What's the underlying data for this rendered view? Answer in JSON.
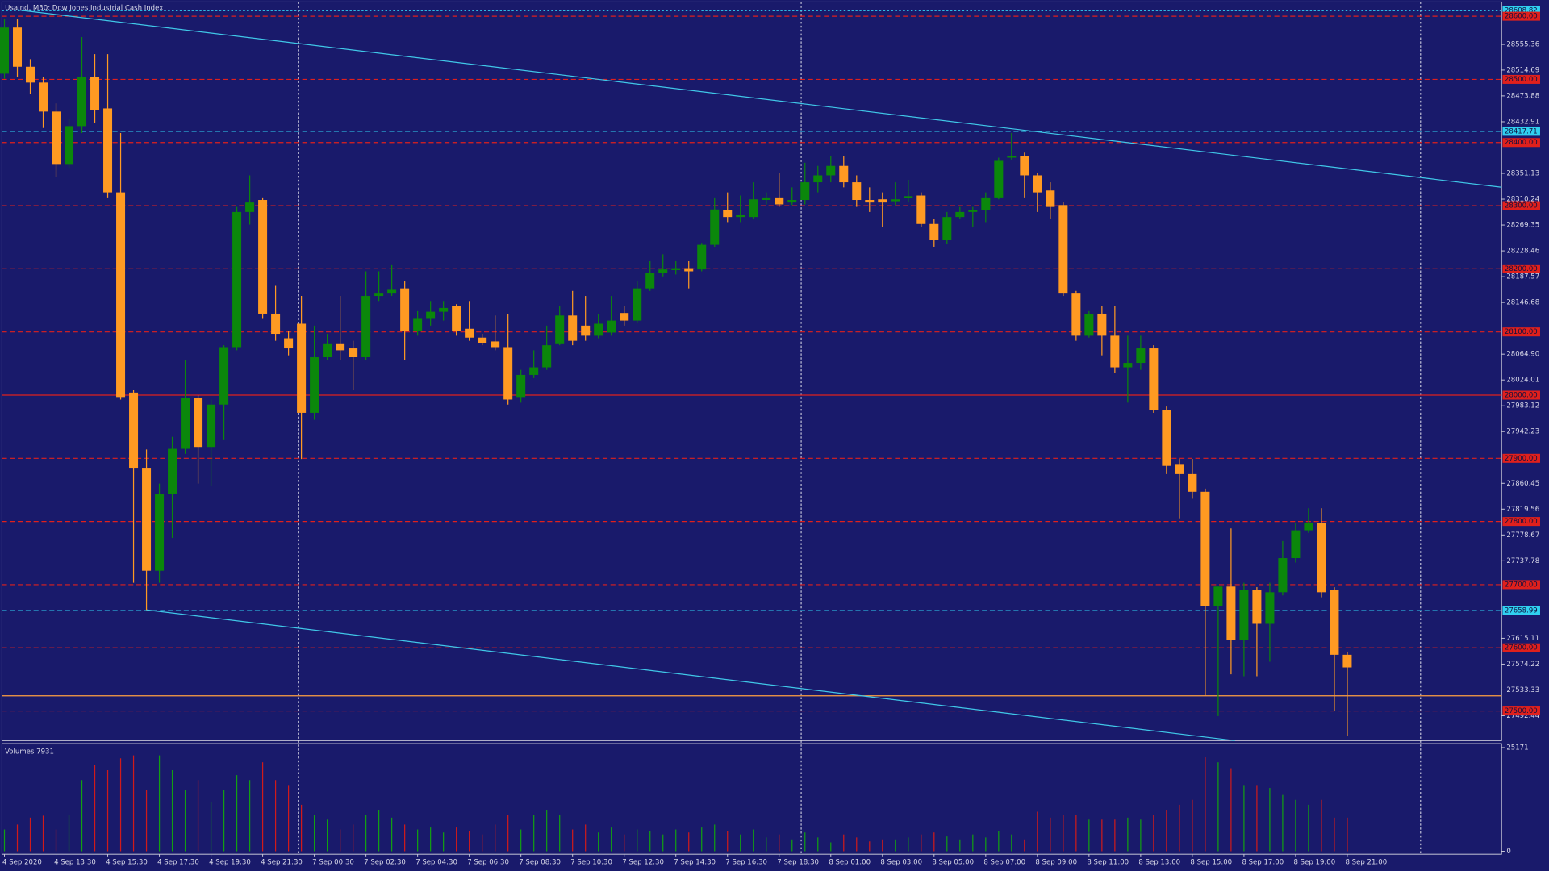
{
  "chart_data": {
    "type": "candlestick",
    "title": "UsaInd, M30:  Dow Jones Industrial Cash Index",
    "categories": [
      "4 Sep 2020",
      null,
      null,
      null,
      "4 Sep 13:30",
      null,
      null,
      null,
      "4 Sep 15:30",
      null,
      null,
      null,
      "4 Sep 17:30",
      null,
      null,
      null,
      "4 Sep 19:30",
      null,
      null,
      null,
      "4 Sep 21:30",
      null,
      null,
      null,
      "7 Sep 00:30",
      null,
      null,
      null,
      "7 Sep 02:30",
      null,
      null,
      null,
      "7 Sep 04:30",
      null,
      null,
      null,
      "7 Sep 06:30",
      null,
      null,
      null,
      "7 Sep 08:30",
      null,
      null,
      null,
      "7 Sep 10:30",
      null,
      null,
      null,
      "7 Sep 12:30",
      null,
      null,
      null,
      "7 Sep 14:30",
      null,
      null,
      null,
      "7 Sep 16:30",
      null,
      null,
      null,
      "7 Sep 18:30",
      null,
      null,
      null,
      "8 Sep 01:00",
      null,
      null,
      null,
      "8 Sep 03:00",
      null,
      null,
      null,
      "8 Sep 05:00",
      null,
      null,
      null,
      "8 Sep 07:00",
      null,
      null,
      null,
      "8 Sep 09:00",
      null,
      null,
      null,
      "8 Sep 11:00",
      null,
      null,
      null,
      "8 Sep 13:00",
      null,
      null,
      null,
      "8 Sep 15:00",
      null,
      null,
      null,
      "8 Sep 17:00",
      null,
      null,
      null,
      "8 Sep 19:00",
      null,
      null,
      null,
      "8 Sep 21:00"
    ],
    "open": [
      28509,
      28582,
      28520,
      28495,
      28449,
      28366,
      28426,
      28504,
      28454,
      28321,
      28004,
      27885,
      27722,
      27844,
      27915,
      27996,
      27918,
      27985,
      28076,
      28290,
      28309,
      28129,
      28090,
      28113,
      27972,
      28060,
      28082,
      28074,
      28060,
      28157,
      28162,
      28169,
      28102,
      28122,
      28132,
      28141,
      28105,
      28091,
      28085,
      28076,
      27997,
      28032,
      28044,
      28082,
      28126,
      28110,
      28094,
      28099,
      28130,
      28118,
      28169,
      28194,
      28198,
      28201,
      28199,
      28238,
      28293,
      28282,
      28282,
      28309,
      28313,
      28305,
      28309,
      28337,
      28348,
      28363,
      28337,
      28309,
      28310,
      28307,
      28312,
      28316,
      28271,
      28246,
      28282,
      28290,
      28293,
      28313,
      28376,
      28379,
      28348,
      28324,
      28301,
      28162,
      28094,
      28129,
      28094,
      28044,
      28051,
      28074,
      27977,
      27891,
      27875,
      27847,
      27666,
      27697,
      27613,
      27691,
      27638,
      27688,
      27742,
      27786,
      27797,
      27691,
      27589
    ],
    "high": [
      28595,
      28595,
      28532,
      28504,
      28462,
      28438,
      28567,
      28540,
      28540,
      28415,
      28008,
      27914,
      27860,
      27934,
      28055,
      28000,
      27993,
      28079,
      28298,
      28348,
      28313,
      28173,
      28102,
      28157,
      28110,
      28097,
      28157,
      28086,
      28196,
      28196,
      28207,
      28180,
      28133,
      28149,
      28149,
      28144,
      28149,
      28097,
      28126,
      28129,
      28040,
      28071,
      28110,
      28141,
      28165,
      28157,
      28129,
      28157,
      28141,
      28180,
      28212,
      28223,
      28212,
      28212,
      28241,
      28313,
      28321,
      28316,
      28337,
      28321,
      28352,
      28329,
      28368,
      28363,
      28379,
      28379,
      28348,
      28329,
      28321,
      28337,
      28341,
      28321,
      28279,
      28290,
      28298,
      28298,
      28321,
      28376,
      28415,
      28384,
      28352,
      28337,
      28305,
      28165,
      28133,
      28141,
      28141,
      28094,
      28094,
      28079,
      27982,
      27899,
      27899,
      27852,
      27697,
      27789,
      27703,
      27696,
      27703,
      27769,
      27797,
      27821,
      27821,
      27696,
      27594
    ],
    "low": [
      28501,
      28504,
      28477,
      28423,
      28345,
      28360,
      28415,
      28431,
      28313,
      27993,
      27703,
      27660,
      27703,
      27774,
      27907,
      27860,
      27857,
      27930,
      28071,
      28270,
      28122,
      28086,
      28063,
      27899,
      27961,
      28055,
      28055,
      28008,
      28055,
      28149,
      28157,
      28055,
      28094,
      28110,
      28118,
      28094,
      28086,
      28079,
      28071,
      27985,
      27988,
      28027,
      28040,
      28079,
      28079,
      28086,
      28090,
      28094,
      28110,
      28115,
      28165,
      28188,
      28191,
      28169,
      28196,
      28235,
      28274,
      28274,
      28279,
      28302,
      28298,
      28301,
      28302,
      28321,
      28337,
      28329,
      28298,
      28290,
      28266,
      28301,
      28305,
      28266,
      28235,
      28240,
      28279,
      28266,
      28274,
      28310,
      28373,
      28313,
      28290,
      28279,
      28157,
      28086,
      28091,
      28063,
      28035,
      27988,
      28040,
      27972,
      27875,
      27805,
      27836,
      27524,
      27492,
      27558,
      27555,
      27555,
      27578,
      27683,
      27735,
      27782,
      27680,
      27500,
      27461
    ],
    "close": [
      28582,
      28520,
      28495,
      28449,
      28366,
      28426,
      28504,
      28451,
      28321,
      27997,
      27885,
      27722,
      27844,
      27915,
      27996,
      27918,
      27985,
      28076,
      28290,
      28305,
      28129,
      28097,
      28074,
      27972,
      28060,
      28082,
      28071,
      28060,
      28157,
      28162,
      28168,
      28102,
      28122,
      28132,
      28138,
      28102,
      28091,
      28083,
      28076,
      27993,
      28032,
      28044,
      28079,
      28126,
      28086,
      28094,
      28113,
      28118,
      28118,
      28169,
      28194,
      28199,
      28201,
      28196,
      28238,
      28294,
      28282,
      28285,
      28310,
      28313,
      28302,
      28309,
      28337,
      28348,
      28363,
      28337,
      28309,
      28305,
      28305,
      28310,
      28315,
      28271,
      28246,
      28282,
      28290,
      28293,
      28313,
      28371,
      28379,
      28348,
      28321,
      28298,
      28162,
      28094,
      28129,
      28094,
      28044,
      28051,
      28074,
      27977,
      27888,
      27875,
      27847,
      27666,
      27697,
      27613,
      27691,
      27638,
      27688,
      27742,
      27786,
      27797,
      27688,
      27589,
      27569
    ],
    "volume": [
      5280,
      6480,
      8160,
      8640,
      5280,
      8880,
      17280,
      20880,
      19680,
      22560,
      23280,
      14880,
      23280,
      19680,
      14880,
      17280,
      12000,
      14880,
      18480,
      17280,
      21600,
      17280,
      16080,
      11280,
      8880,
      7680,
      5280,
      6480,
      8880,
      10080,
      8160,
      6480,
      5280,
      5760,
      4560,
      5760,
      4800,
      4080,
      6480,
      8880,
      5280,
      8880,
      10080,
      8880,
      5280,
      6480,
      4560,
      5760,
      4080,
      5280,
      4800,
      4080,
      5280,
      4560,
      5760,
      6480,
      4800,
      4080,
      5280,
      3360,
      4080,
      2880,
      4560,
      3360,
      2160,
      4080,
      3360,
      2400,
      2880,
      2880,
      3360,
      4080,
      4560,
      3600,
      2880,
      4080,
      3360,
      4800,
      4080,
      2880,
      9600,
      8160,
      8880,
      8880,
      7680,
      7680,
      7680,
      8160,
      7680,
      8880,
      10080,
      11280,
      12480,
      22800,
      21600,
      20160,
      16080,
      16080,
      15360,
      13680,
      12480,
      11280,
      12480,
      8160,
      8160
    ],
    "volume_label": "Volumes 7931",
    "volume_ylim": [
      0,
      25171
    ],
    "volume_yticks": [
      25171,
      0
    ],
    "ylim": [
      27453,
      28621
    ],
    "yticks": [
      28555.36,
      28514.69,
      28473.88,
      28432.91,
      28351.13,
      28310.24,
      28269.35,
      28228.46,
      28187.57,
      28146.68,
      {
        "value": 28064.9,
        "label": "28064.90"
      },
      28024.01,
      27983.12,
      27942.23,
      27860.45,
      27819.56,
      27778.67,
      27737.78,
      27615.11,
      27574.22,
      27533.33,
      27492.44
    ],
    "levels": [
      {
        "value": 28608.82,
        "label": "28608.82",
        "color": "#30d0f0",
        "style": "dotted"
      },
      {
        "value": 28600,
        "label": "28600.00",
        "color": "#e0201c",
        "style": "dashed"
      },
      {
        "value": 28500,
        "label": "28500.00",
        "color": "#e0201c",
        "style": "dashed"
      },
      {
        "value": 28417.71,
        "label": "28417.71",
        "color": "#30d0f0",
        "style": "dashed"
      },
      {
        "value": 28400,
        "label": "28400.00",
        "color": "#e0201c",
        "style": "dashed"
      },
      {
        "value": 28300,
        "label": "28300.00",
        "color": "#e0201c",
        "style": "dashed"
      },
      {
        "value": 28200,
        "label": "28200.00",
        "color": "#e0201c",
        "style": "dashed"
      },
      {
        "value": 28100,
        "label": "28100.00",
        "color": "#e0201c",
        "style": "dashed"
      },
      {
        "value": 28000,
        "label": "28000.00",
        "color": "#e0201c",
        "style": "solid"
      },
      {
        "value": 27900,
        "label": "27900.00",
        "color": "#e0201c",
        "style": "dashed"
      },
      {
        "value": 27800,
        "label": "27800.00",
        "color": "#e0201c",
        "style": "dashed"
      },
      {
        "value": 27700,
        "label": "27700.00",
        "color": "#e0201c",
        "style": "dashed"
      },
      {
        "value": 27658.99,
        "label": "27658.99",
        "color": "#30d0f0",
        "style": "dashed"
      },
      {
        "value": 27600,
        "label": "27600.00",
        "color": "#e0201c",
        "style": "dashed"
      },
      {
        "value": 27500,
        "label": "27500.00",
        "color": "#e0201c",
        "style": "dashed"
      }
    ],
    "lines": [
      {
        "value": 27524,
        "color": "#ffa040"
      }
    ],
    "trendlines": [
      {
        "x": [
          1,
          116
        ],
        "y": [
          28610,
          28329
        ],
        "color": "#40c8e8"
      },
      {
        "x": [
          11,
          95.3
        ],
        "y": [
          27660,
          27453
        ],
        "color": "#40c8e8"
      }
    ],
    "up_color": "#0b870b",
    "down_color": "#ff9a22",
    "volume_up_color": "#12a012",
    "volume_down_color": "#d01a1a"
  }
}
